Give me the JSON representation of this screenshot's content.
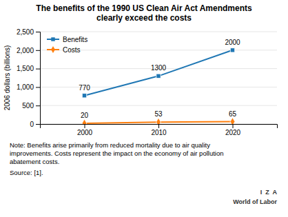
{
  "chart_data": {
    "type": "line",
    "title": "The benefits of the 1990 US Clean Air Act Amendments\nclearly exceed the costs",
    "y_label": "2006 dollars (billions)",
    "x": [
      2000,
      2010,
      2020
    ],
    "series": [
      {
        "name": "Benefits",
        "values": [
          770,
          1300,
          2000
        ],
        "marker": "square",
        "line_style": "solid"
      },
      {
        "name": "Costs",
        "values": [
          20,
          53,
          65
        ],
        "marker": "diamond",
        "line_style": "solid"
      }
    ],
    "xlim": [
      1994,
      2026
    ],
    "xticks": [
      2000,
      2010,
      2020
    ],
    "ylim": [
      0,
      2500
    ],
    "yticks": [
      0,
      500,
      {
        "value": 1000,
        "label": "1,000"
      },
      {
        "value": 1500,
        "label": "1,500"
      },
      {
        "value": 2000,
        "label": "2,000"
      },
      {
        "value": 2500,
        "label": "2,500"
      }
    ],
    "grid": true,
    "legend": "upper left",
    "data_labels": true,
    "annotations": [
      "Note: Benefits arise primarily from reduced mortality due to air quality",
      "improvements. Costs represent the impact on the economy of air pollution",
      "abatement costs.",
      "Source: [1].",
      "I  Z  A",
      "World of Labor"
    ]
  }
}
